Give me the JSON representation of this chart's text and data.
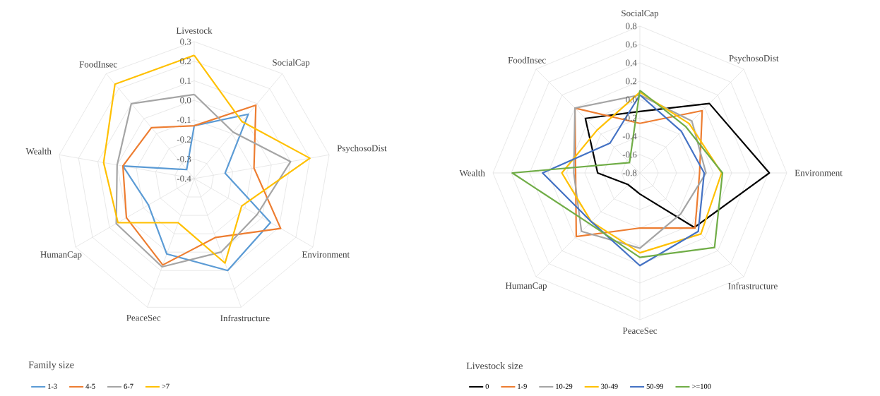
{
  "chart_data": [
    {
      "type": "radar",
      "categories": [
        "Livestock",
        "SocialCap",
        "PsychosoDist",
        "Environment",
        "Infrastructure",
        "PeaceSec",
        "HumanCap",
        "Wealth",
        "FoodInsec"
      ],
      "ylim": [
        -0.4,
        0.3
      ],
      "yticks": [
        0.3,
        0.2,
        0.1,
        {
          "value": 0,
          "label": "0.0"
        },
        -0.1,
        -0.2,
        -0.3,
        -0.4
      ],
      "grid": true,
      "legend": "bottom left",
      "legend_title": "Family size",
      "series": [
        {
          "name": "1-3",
          "color": "#5b9bd5",
          "values": [
            -0.13,
            0.03,
            -0.24,
            0.05,
            0.1,
            0.01,
            -0.13,
            -0.03,
            -0.34
          ]
        },
        {
          "name": "4-5",
          "color": "#ed7d31",
          "values": [
            -0.13,
            0.09,
            -0.09,
            0.11,
            -0.08,
            0.07,
            0.0,
            -0.03,
            -0.06
          ]
        },
        {
          "name": "6-7",
          "color": "#a5a5a5",
          "values": [
            0.03,
            -0.09,
            0.1,
            -0.03,
            0.0,
            0.08,
            0.06,
            0.0,
            0.1
          ]
        },
        {
          "name": ">7",
          "color": "#ffc000",
          "values": [
            0.23,
            -0.02,
            0.2,
            -0.12,
            0.06,
            -0.16,
            0.05,
            0.07,
            0.23
          ]
        }
      ]
    },
    {
      "type": "radar",
      "categories": [
        "SocialCap",
        "PsychosoDist",
        "Environment",
        "Infrastructure",
        "PeaceSec",
        "HumanCap",
        "Wealth",
        "FoodInsec"
      ],
      "ylim": [
        -0.8,
        0.8
      ],
      "yticks": [
        0.8,
        0.6,
        0.4,
        0.2,
        {
          "value": 0,
          "label": "0.0"
        },
        -0.2,
        -0.4,
        -0.6,
        -0.8
      ],
      "grid": true,
      "legend": "bottom left",
      "legend_title": "Livestock size",
      "series": [
        {
          "name": "0",
          "color": "#000000",
          "values": [
            -0.13,
            0.27,
            0.61,
            0.04,
            -0.57,
            -0.62,
            -0.34,
            0.04
          ]
        },
        {
          "name": "1-9",
          "color": "#ed7d31",
          "values": [
            -0.26,
            0.16,
            -0.15,
            0.05,
            -0.2,
            0.18,
            -0.1,
            0.2
          ]
        },
        {
          "name": "10-29",
          "color": "#a5a5a5",
          "values": [
            0.05,
            0.0,
            -0.08,
            -0.17,
            0.02,
            0.1,
            -0.08,
            0.2
          ]
        },
        {
          "name": "30-49",
          "color": "#ffc000",
          "values": [
            0.08,
            -0.04,
            0.09,
            0.14,
            0.07,
            -0.05,
            0.05,
            -0.14
          ]
        },
        {
          "name": "50-99",
          "color": "#4472c4",
          "values": [
            0.05,
            -0.16,
            -0.1,
            0.1,
            0.21,
            -0.05,
            0.26,
            -0.34
          ]
        },
        {
          "name": ">=100",
          "color": "#70ad47",
          "values": [
            0.1,
            -0.09,
            0.1,
            0.35,
            0.12,
            -0.02,
            0.59,
            -0.64
          ]
        }
      ]
    }
  ]
}
